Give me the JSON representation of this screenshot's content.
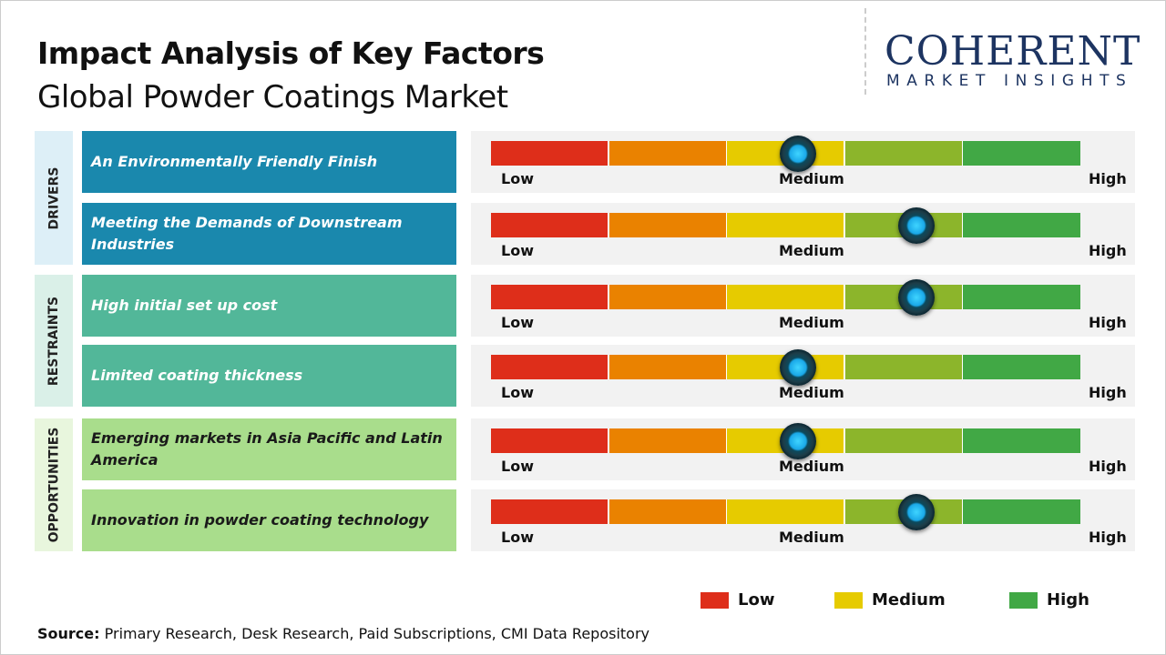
{
  "header": {
    "title": "Impact Analysis of Key Factors",
    "subtitle": "Global Powder Coatings Market"
  },
  "logo": {
    "name": "COHERENT",
    "tagline": "MARKET INSIGHTS"
  },
  "colors": {
    "low": "#de2e1a",
    "low_medium": "#ea8200",
    "medium": "#e6cb00",
    "medium_high": "#8cb52b",
    "high": "#41a845"
  },
  "chart_data": {
    "type": "gauge",
    "scale_labels": [
      "Low",
      "Medium",
      "High"
    ],
    "categories": [
      {
        "name": "DRIVERS",
        "bg": "#ddeff7",
        "row_color": "#1a88ad",
        "text_color": "#ffffff"
      },
      {
        "name": "RESTRAINTS",
        "bg": "#daf0e8",
        "row_color": "#52b799",
        "text_color": "#ffffff"
      },
      {
        "name": "OPPORTUNITIES",
        "bg": "#e8f6dd",
        "row_color": "#a9dd8c",
        "text_color": "#1a1a1a"
      }
    ],
    "factors": [
      {
        "category": "DRIVERS",
        "label": "An Environmentally Friendly Finish",
        "impact": 0.52
      },
      {
        "category": "DRIVERS",
        "label": "Meeting the Demands of Downstream Industries",
        "impact": 0.72
      },
      {
        "category": "RESTRAINTS",
        "label": "High initial set up cost",
        "impact": 0.72
      },
      {
        "category": "RESTRAINTS",
        "label": "Limited coating thickness",
        "impact": 0.52
      },
      {
        "category": "OPPORTUNITIES",
        "label": "Emerging markets in Asia Pacific and Latin America",
        "impact": 0.52
      },
      {
        "category": "OPPORTUNITIES",
        "label": "Innovation in powder coating technology",
        "impact": 0.72
      }
    ],
    "legend": [
      {
        "label": "Low",
        "color": "#de2e1a"
      },
      {
        "label": "Medium",
        "color": "#e6cb00"
      },
      {
        "label": "High",
        "color": "#41a845"
      }
    ]
  },
  "source": {
    "label": "Source:",
    "text": " Primary Research, Desk Research, Paid Subscriptions, CMI Data Repository"
  }
}
